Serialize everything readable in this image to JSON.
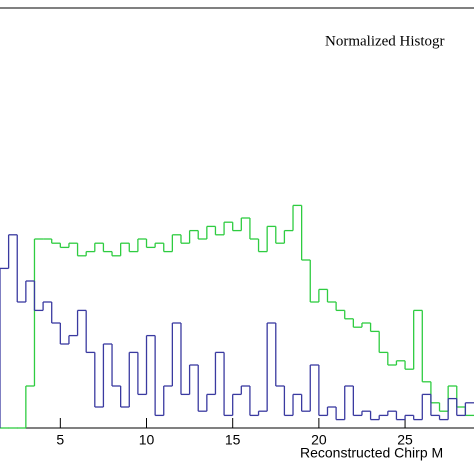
{
  "chart_data": {
    "type": "histogram",
    "title": "Normalized Histogr",
    "x_label": "Reconstructed Chirp M",
    "bins": [
      1.5,
      2,
      2.5,
      3,
      3.5,
      4,
      4.5,
      5,
      5.5,
      6,
      6.5,
      7,
      7.5,
      8,
      8.5,
      9,
      9.5,
      10,
      10.5,
      11,
      11.5,
      12,
      12.5,
      13,
      13.5,
      14,
      14.5,
      15,
      15.5,
      16,
      16.5,
      17,
      17.5,
      18,
      18.5,
      19,
      19.5,
      20,
      20.5,
      21,
      21.5,
      22,
      22.5,
      23,
      23.5,
      24,
      24.5,
      25,
      25.5,
      26,
      26.5,
      27,
      27.5,
      28,
      28.5,
      29
    ],
    "series": [
      {
        "color": "#2ecc40",
        "values": [
          0,
          0,
          0,
          10,
          45,
          45,
          44,
          43,
          44,
          41,
          42,
          44,
          42,
          41,
          44,
          42,
          45,
          43,
          44,
          42,
          46,
          44,
          47,
          45,
          48,
          46,
          49,
          47,
          50,
          45,
          42,
          48,
          44,
          47,
          53,
          40,
          30,
          33,
          30,
          28,
          26,
          24,
          25,
          23,
          18,
          15,
          16,
          14,
          28,
          11,
          6,
          4,
          10,
          5,
          3
        ]
      },
      {
        "color": "#3a3aa0",
        "values": [
          38,
          46,
          30,
          35,
          28,
          30,
          25,
          20,
          22,
          28,
          18,
          5,
          20,
          10,
          5,
          18,
          8,
          22,
          3,
          10,
          25,
          8,
          15,
          4,
          8,
          18,
          3,
          8,
          10,
          3,
          4,
          25,
          10,
          3,
          8,
          4,
          15,
          3,
          5,
          2,
          10,
          3,
          4,
          2,
          3,
          4,
          2,
          3,
          2,
          8,
          3,
          2,
          7,
          3,
          6
        ]
      }
    ],
    "xlim": [
      1.5,
      29
    ],
    "ylim": [
      0,
      100
    ],
    "xticks": [
      5,
      10,
      15,
      20,
      25
    ]
  }
}
